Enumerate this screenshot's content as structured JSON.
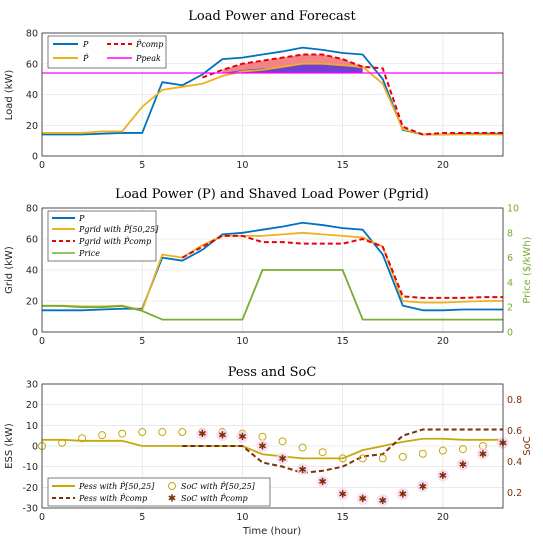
{
  "colors": {
    "blue": "#0072bd",
    "orange": "#edb120",
    "red": "#e8000b",
    "magenta": "#ff00ff",
    "green": "#77ac30",
    "olive": "#c7a80a",
    "darkred": "#7e2f0a",
    "fill_red": "#f07070",
    "fill_purple": "#5a1ecc",
    "ylabel_right_color": "#77ac30"
  },
  "chart_data": [
    {
      "type": "line",
      "title": "Load Power and Forecast",
      "xlabel": "",
      "ylabel": "Load (kW)",
      "xlim": [
        0,
        23
      ],
      "ylim": [
        0,
        80
      ],
      "xticks": [
        0,
        5,
        10,
        15,
        20
      ],
      "yticks": [
        0,
        20,
        40,
        60,
        80
      ],
      "grid": true,
      "legend_position": "top-left",
      "legend": [
        "P",
        "P̂",
        "P̂comp",
        "Ppeak"
      ],
      "peak": 54,
      "x": [
        0,
        1,
        2,
        3,
        4,
        5,
        6,
        7,
        8,
        9,
        10,
        11,
        12,
        13,
        14,
        15,
        16,
        17,
        18,
        19,
        20,
        21,
        22,
        23
      ],
      "series": [
        {
          "name": "P",
          "color_key": "blue",
          "values": [
            14,
            14,
            14,
            14.5,
            15,
            15,
            48,
            46,
            53,
            63,
            64,
            66,
            68,
            70.5,
            69,
            67,
            66,
            50,
            17,
            14,
            14,
            14.5,
            14.5,
            14.5
          ]
        },
        {
          "name": "P̂",
          "color_key": "orange",
          "values": [
            15,
            15,
            15,
            16,
            16,
            32,
            43,
            45,
            47,
            52,
            55,
            56,
            58,
            60,
            60,
            59,
            58,
            47,
            17.5,
            14,
            14,
            14,
            14,
            14
          ]
        },
        {
          "name": "P̂comp",
          "color_key": "red",
          "dashed": true,
          "start": 8,
          "values": [
            null,
            null,
            null,
            null,
            null,
            null,
            null,
            null,
            51,
            56,
            60,
            62,
            64,
            66,
            66,
            63,
            58,
            57,
            19,
            14,
            15,
            15,
            15,
            15
          ]
        }
      ],
      "shaded": {
        "x": [
          9,
          10,
          11,
          12,
          13,
          14,
          15,
          16
        ],
        "upper": [
          56,
          60,
          62,
          64,
          66,
          66,
          63,
          58
        ],
        "mid": [
          54,
          56,
          57,
          58,
          60,
          60,
          59,
          57
        ]
      }
    },
    {
      "type": "line",
      "title": "Load Power (P) and Shaved Load Power (Pgrid)",
      "xlabel": "",
      "ylabel": "Grid (kW)",
      "ylabel_right": "Price ($/kWh)",
      "xlim": [
        0,
        23
      ],
      "ylim": [
        0,
        80
      ],
      "ylim_right": [
        0,
        10
      ],
      "xticks": [
        0,
        5,
        10,
        15,
        20
      ],
      "yticks": [
        0,
        20,
        40,
        60,
        80
      ],
      "yticks_right": [
        0,
        2,
        4,
        6,
        8,
        10
      ],
      "grid": true,
      "legend_position": "top-left",
      "legend": [
        "P",
        "Pgrid with P̂[50,25]",
        "Pgrid with P̂comp",
        "Price"
      ],
      "x": [
        0,
        1,
        2,
        3,
        4,
        5,
        6,
        7,
        8,
        9,
        10,
        11,
        12,
        13,
        14,
        15,
        16,
        17,
        18,
        19,
        20,
        21,
        22,
        23
      ],
      "series": [
        {
          "name": "P",
          "color_key": "blue",
          "values": [
            14,
            14,
            14,
            14.5,
            15,
            15,
            48,
            46,
            53,
            63,
            64,
            66,
            68,
            70.5,
            69,
            67,
            66,
            50,
            17,
            14,
            14,
            14.5,
            14.5,
            14.5
          ]
        },
        {
          "name": "Pgrid with P̂[50,25]",
          "color_key": "orange",
          "values": [
            17,
            17,
            16.5,
            16.5,
            17,
            14,
            50,
            48,
            56,
            62,
            62,
            62,
            63,
            64,
            63,
            62,
            61,
            55,
            20,
            19,
            19,
            19.5,
            20,
            20
          ]
        },
        {
          "name": "Pgrid with P̂comp",
          "color_key": "red",
          "dashed": true,
          "start": 7,
          "values": [
            null,
            null,
            null,
            null,
            null,
            null,
            null,
            48,
            55,
            62,
            62,
            58,
            58,
            57,
            57,
            57,
            60,
            55,
            23,
            22,
            22,
            22,
            22.5,
            22.5
          ]
        },
        {
          "name": "Price",
          "color_key": "green",
          "axis": "right",
          "values": [
            2.1,
            2.1,
            2.0,
            2.0,
            2.1,
            1.7,
            1.0,
            1.0,
            1.0,
            1.0,
            1.0,
            5.0,
            5.0,
            5.0,
            5.0,
            5.0,
            1.0,
            1.0,
            1.0,
            1.0,
            1.0,
            1.0,
            1.0,
            1.0
          ]
        }
      ]
    },
    {
      "type": "line",
      "title": "Pess and SoC",
      "xlabel": "Time (hour)",
      "ylabel": "ESS (kW)",
      "ylabel_right": "SoC",
      "xlim": [
        0,
        23
      ],
      "ylim": [
        -30,
        30
      ],
      "ylim_right": [
        0.1,
        0.9
      ],
      "xticks": [
        0,
        5,
        10,
        15,
        20
      ],
      "xticklabels": [
        "0",
        "5",
        "10",
        "15",
        "20"
      ],
      "yticks": [
        -30,
        -20,
        -10,
        0,
        10,
        20,
        30
      ],
      "yticks_right": [
        0.2,
        0.4,
        0.6,
        0.8
      ],
      "grid": true,
      "legend_position": "bottom-left",
      "legend": [
        "Pess with P̂[50,25]",
        "Pess with P̂comp",
        "SoC with P̂[50,25]",
        "SoC with P̂comp"
      ],
      "x": [
        0,
        1,
        2,
        3,
        4,
        5,
        6,
        7,
        8,
        9,
        10,
        11,
        12,
        13,
        14,
        15,
        16,
        17,
        18,
        19,
        20,
        21,
        22,
        23
      ],
      "series": [
        {
          "name": "Pess with P̂[50,25]",
          "color_key": "olive",
          "values": [
            3,
            3,
            2.5,
            2.5,
            2.5,
            0,
            0,
            0,
            0,
            0,
            0,
            -4,
            -5,
            -6,
            -6,
            -6,
            -2,
            0,
            2,
            3.5,
            3.5,
            3,
            3,
            3
          ]
        },
        {
          "name": "Pess with P̂comp",
          "color_key": "darkred",
          "dashed": true,
          "start": 7,
          "values": [
            null,
            null,
            null,
            null,
            null,
            null,
            null,
            0,
            0,
            0,
            0,
            -8,
            -10,
            -13,
            -12,
            -10,
            -5,
            -4,
            5,
            8,
            8,
            8,
            8,
            8
          ]
        },
        {
          "name": "SoC with P̂[50,25]",
          "color_key": "olive",
          "marker": "circle",
          "axis": "right",
          "values": [
            0.5,
            0.52,
            0.55,
            0.57,
            0.58,
            0.59,
            0.59,
            0.59,
            0.59,
            0.59,
            0.58,
            0.56,
            0.53,
            0.49,
            0.46,
            0.42,
            0.42,
            0.42,
            0.43,
            0.45,
            0.47,
            0.48,
            0.5,
            0.51
          ]
        },
        {
          "name": "SoC with P̂comp",
          "color_key": "darkred",
          "marker": "star",
          "axis": "right",
          "values": [
            null,
            null,
            null,
            null,
            null,
            null,
            null,
            null,
            0.58,
            0.57,
            0.56,
            0.5,
            0.42,
            0.35,
            0.27,
            0.19,
            0.16,
            0.15,
            0.19,
            0.24,
            0.31,
            0.38,
            0.45,
            0.52
          ]
        }
      ]
    }
  ]
}
